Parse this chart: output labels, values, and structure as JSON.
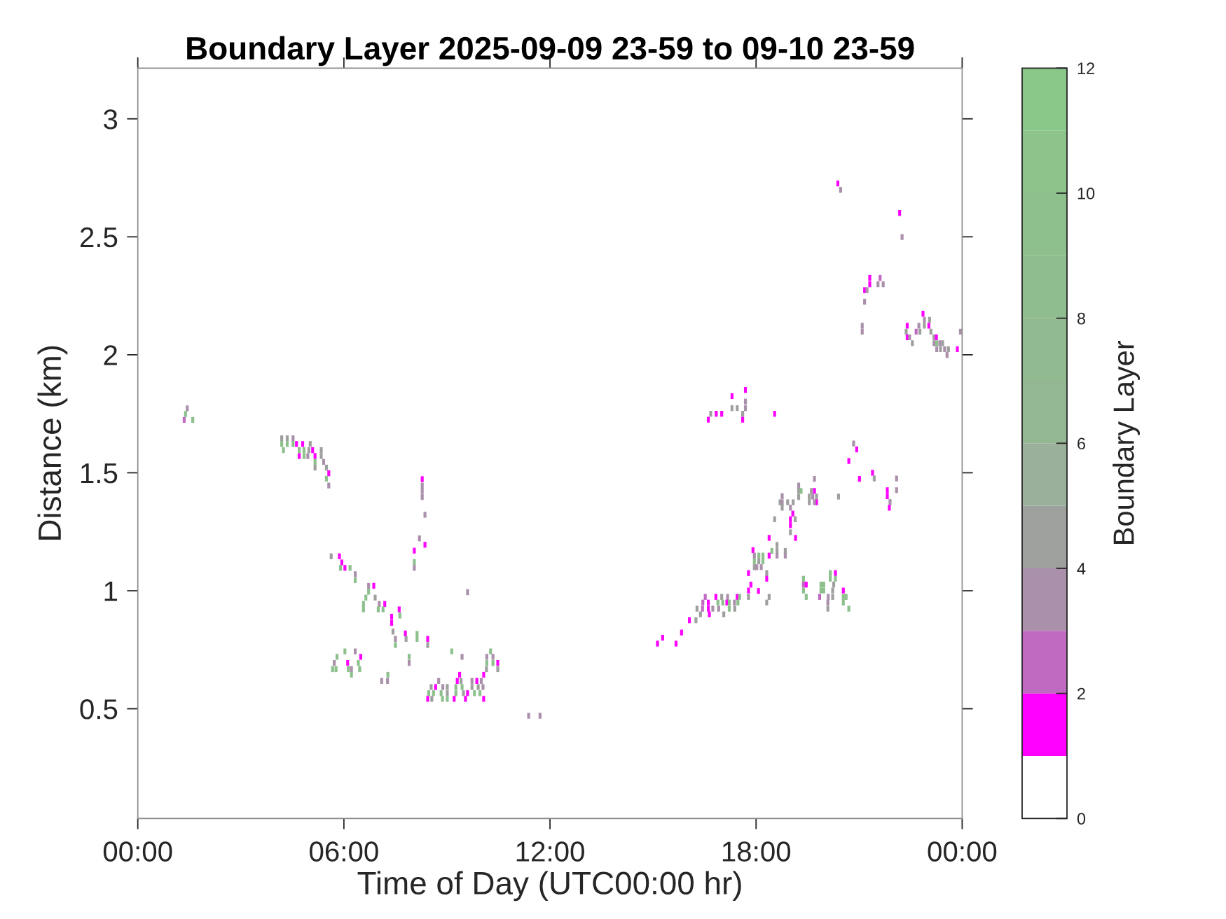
{
  "chart_data": {
    "type": "scatter",
    "title": "Boundary Layer 2025-09-09 23-59 to 09-10 23-59",
    "xlabel": "Time of Day (UTC00:00 hr)",
    "ylabel": "Distance (km)",
    "clabel": "Boundary Layer",
    "xlim": [
      0,
      24
    ],
    "xticks": [
      {
        "value": 0,
        "label": "00:00"
      },
      {
        "value": 6,
        "label": "06:00"
      },
      {
        "value": 12,
        "label": "12:00"
      },
      {
        "value": 18,
        "label": "18:00"
      },
      {
        "value": 24,
        "label": "00:00"
      }
    ],
    "ylim": [
      0.035,
      3.215
    ],
    "yticks": [
      0.5,
      1,
      1.5,
      2,
      2.5,
      3
    ],
    "clim": [
      0,
      12
    ],
    "cticks": [
      0,
      2,
      4,
      6,
      8,
      10,
      12
    ],
    "marker": "square",
    "x": [
      1.44,
      1.39,
      1.35,
      1.6,
      4.19,
      4.35,
      4.52,
      4.19,
      4.35,
      4.52,
      4.24,
      4.62,
      4.8,
      5.02,
      4.7,
      4.84,
      4.98,
      5.09,
      4.7,
      4.84,
      4.95,
      5.16,
      5.34,
      5.34,
      5.16,
      5.41,
      5.16,
      5.49,
      5.56,
      5.49,
      5.56,
      8.28,
      8.28,
      8.28,
      8.28,
      8.36,
      8.2,
      8.36,
      8.05,
      8.05,
      8.05,
      5.63,
      5.87,
      5.94,
      5.9,
      6.03,
      6.18,
      6.33,
      6.33,
      6.72,
      6.87,
      6.72,
      6.64,
      6.57,
      6.57,
      6.91,
      7.03,
      7.19,
      7.0,
      7.14,
      7.61,
      7.63,
      7.39,
      7.39,
      7.43,
      7.79,
      8.13,
      7.5,
      7.5,
      7.81,
      8.44,
      8.44,
      8.13,
      6.03,
      6.33,
      5.8,
      6.49,
      5.72,
      6.11,
      6.42,
      5.67,
      5.77,
      6.13,
      6.22,
      6.46,
      6.22,
      7.9,
      7.9,
      7.28,
      7.1,
      7.27,
      9.14,
      9.44,
      10.27,
      10.16,
      10.34,
      10.16,
      10.34,
      10.48,
      10.15,
      10.48,
      9.37,
      10.07,
      8.76,
      9.3,
      9.41,
      9.73,
      9.87,
      10.0,
      8.54,
      8.67,
      8.88,
      9.01,
      9.26,
      9.44,
      9.73,
      9.91,
      10.05,
      8.47,
      8.61,
      8.83,
      9.01,
      9.26,
      9.48,
      9.6,
      9.8,
      9.96,
      8.44,
      8.56,
      8.87,
      9.01,
      9.21,
      9.54,
      10.07,
      11.38,
      11.71,
      9.6,
      17.69,
      17.3,
      17.69,
      17.3,
      17.45,
      17.69,
      16.68,
      16.84,
      17.0,
      17.61,
      18.54,
      16.61,
      17.61,
      20.84,
      20.93,
      20.7,
      21.01,
      21.39,
      21.44,
      22.09,
      21.82,
      22.09,
      21.82,
      21.9,
      21.88,
      19.7,
      19.24,
      19.24,
      19.31,
      19.24,
      19.61,
      19.7,
      19.55,
      19.65,
      19.76,
      19.55,
      19.76,
      19.7,
      20.4,
      18.76,
      18.7,
      18.76,
      18.92,
      19.08,
      18.76,
      19.0,
      19.07,
      19.0,
      19.14,
      19.0,
      19.0,
      19.15,
      18.54,
      18.38,
      18.61,
      18.46,
      18.61,
      18.85,
      17.91,
      17.95,
      18.08,
      18.2,
      18.38,
      18.61,
      18.85,
      17.95,
      18.08,
      18.2,
      17.95,
      18.02,
      18.15,
      17.78,
      18.31,
      18.31,
      17.85,
      17.78,
      18.07,
      17.78,
      18.38,
      18.31,
      16.52,
      16.83,
      17.0,
      17.17,
      17.45,
      17.52,
      16.45,
      16.61,
      16.89,
      17.03,
      17.15,
      17.22,
      17.37,
      17.47,
      16.28,
      16.44,
      16.61,
      16.74,
      16.91,
      17.22,
      17.38,
      16.38,
      16.64,
      17.06,
      16.06,
      16.25,
      15.83,
      15.28,
      15.13,
      15.67,
      20.16,
      20.31,
      19.38,
      20.16,
      20.31,
      19.38,
      19.46,
      19.89,
      19.97,
      20.26,
      19.38,
      19.89,
      19.97,
      20.23,
      20.54,
      19.46,
      19.85,
      20.1,
      20.23,
      20.54,
      20.62,
      20.09,
      20.54,
      20.09,
      20.7,
      20.38,
      20.46,
      22.18,
      22.25,
      21.31,
      21.31,
      21.61,
      21.55,
      21.7,
      21.16,
      21.23,
      21.16,
      21.09,
      21.09,
      22.4,
      22.37,
      22.4,
      22.47,
      22.55,
      22.86,
      22.9,
      23.05,
      22.74,
      22.9,
      23.03,
      22.66,
      22.77,
      23.09,
      23.18,
      23.25,
      23.18,
      23.26,
      23.35,
      23.43,
      23.26,
      23.37,
      23.49,
      23.6,
      23.56,
      23.86,
      23.95
    ],
    "values": [
      1.773,
      1.749,
      1.724,
      1.724,
      1.646,
      1.646,
      1.646,
      1.622,
      1.622,
      1.622,
      1.596,
      1.622,
      1.622,
      1.622,
      1.596,
      1.596,
      1.596,
      1.596,
      1.571,
      1.571,
      1.571,
      1.571,
      1.596,
      1.571,
      1.546,
      1.546,
      1.522,
      1.522,
      1.498,
      1.475,
      1.446,
      1.473,
      1.446,
      1.423,
      1.397,
      1.322,
      1.222,
      1.195,
      1.17,
      1.122,
      1.097,
      1.146,
      1.146,
      1.12,
      1.097,
      1.097,
      1.097,
      1.07,
      1.045,
      1.021,
      1.021,
      0.996,
      0.971,
      0.944,
      0.921,
      0.971,
      0.944,
      0.944,
      0.921,
      0.921,
      0.921,
      0.895,
      0.89,
      0.864,
      0.827,
      0.819,
      0.817,
      0.796,
      0.77,
      0.796,
      0.796,
      0.77,
      0.796,
      0.743,
      0.743,
      0.72,
      0.72,
      0.694,
      0.694,
      0.694,
      0.668,
      0.668,
      0.668,
      0.668,
      0.668,
      0.644,
      0.72,
      0.694,
      0.644,
      0.618,
      0.618,
      0.743,
      0.72,
      0.743,
      0.72,
      0.72,
      0.694,
      0.694,
      0.694,
      0.668,
      0.668,
      0.644,
      0.644,
      0.618,
      0.618,
      0.618,
      0.618,
      0.618,
      0.618,
      0.592,
      0.592,
      0.592,
      0.592,
      0.592,
      0.592,
      0.592,
      0.592,
      0.592,
      0.566,
      0.566,
      0.566,
      0.566,
      0.566,
      0.566,
      0.566,
      0.566,
      0.566,
      0.542,
      0.542,
      0.542,
      0.542,
      0.542,
      0.542,
      0.542,
      0.47,
      0.47,
      0.994,
      1.851,
      1.825,
      1.802,
      1.774,
      1.774,
      1.774,
      1.75,
      1.75,
      1.75,
      1.75,
      1.75,
      1.725,
      1.725,
      1.624,
      1.599,
      1.55,
      1.474,
      1.5,
      1.476,
      1.476,
      1.426,
      1.426,
      1.401,
      1.376,
      1.352,
      1.474,
      1.446,
      1.423,
      1.423,
      1.397,
      1.423,
      1.423,
      1.399,
      1.399,
      1.399,
      1.375,
      1.375,
      1.375,
      1.399,
      1.401,
      1.375,
      1.375,
      1.375,
      1.375,
      1.352,
      1.352,
      1.327,
      1.303,
      1.303,
      1.278,
      1.248,
      1.224,
      1.303,
      1.224,
      1.194,
      1.169,
      1.169,
      1.169,
      1.172,
      1.149,
      1.149,
      1.149,
      1.149,
      1.149,
      1.149,
      1.125,
      1.125,
      1.125,
      1.1,
      1.1,
      1.1,
      1.075,
      1.075,
      1.051,
      1.026,
      1.001,
      0.999,
      0.974,
      0.974,
      0.95,
      0.974,
      0.974,
      0.974,
      0.974,
      0.974,
      0.974,
      0.95,
      0.95,
      0.95,
      0.95,
      0.95,
      0.95,
      0.95,
      0.95,
      0.924,
      0.924,
      0.924,
      0.924,
      0.924,
      0.924,
      0.924,
      0.9,
      0.9,
      0.9,
      0.875,
      0.875,
      0.823,
      0.801,
      0.776,
      0.776,
      1.075,
      1.075,
      1.051,
      1.051,
      1.051,
      1.026,
      1.026,
      1.026,
      1.026,
      1.026,
      1.001,
      1.001,
      1.001,
      1.001,
      1.001,
      0.974,
      0.974,
      0.974,
      0.974,
      0.974,
      0.974,
      0.95,
      0.95,
      0.924,
      0.924,
      2.726,
      2.699,
      2.601,
      2.499,
      2.326,
      2.299,
      2.326,
      2.299,
      2.299,
      2.274,
      2.274,
      2.225,
      2.123,
      2.098,
      2.123,
      2.098,
      2.074,
      2.074,
      2.049,
      2.174,
      2.148,
      2.148,
      2.123,
      2.123,
      2.123,
      2.098,
      2.098,
      2.098,
      2.074,
      2.074,
      2.049,
      2.049,
      2.049,
      2.049,
      2.024,
      2.024,
      2.024,
      2.024,
      1.999,
      2.024,
      2.098
    ],
    "cvalues": [
      3.5,
      9.5,
      2.5,
      9.5,
      4.5,
      4.5,
      3.5,
      9.5,
      9.5,
      9.5,
      9.5,
      1.5,
      1.5,
      4.5,
      9.5,
      9.5,
      4.5,
      1.5,
      1.5,
      9.5,
      3.5,
      1.5,
      4.5,
      4.5,
      9.5,
      3.5,
      4.5,
      4.5,
      1.5,
      9.5,
      3.5,
      1.5,
      3.5,
      3.5,
      3.5,
      3.5,
      3.5,
      1.5,
      1.5,
      9.5,
      3.5,
      4.5,
      1.5,
      1.5,
      9.5,
      1.5,
      9.5,
      3.5,
      9.5,
      3.5,
      1.5,
      9.5,
      9.5,
      9.5,
      9.5,
      4.5,
      3.5,
      1.5,
      9.5,
      9.5,
      1.5,
      9.5,
      1.5,
      1.5,
      4.5,
      1.5,
      9.5,
      3.5,
      9.5,
      4.5,
      1.5,
      4.5,
      9.5,
      9.5,
      3.5,
      9.5,
      1.5,
      3.5,
      1.5,
      9.5,
      9.5,
      9.5,
      9.5,
      3.5,
      9.5,
      9.5,
      9.5,
      3.5,
      9.5,
      3.5,
      3.5,
      9.5,
      3.5,
      9.5,
      3.5,
      3.5,
      9.5,
      9.5,
      1.5,
      4.5,
      4.5,
      1.5,
      1.5,
      3.5,
      1.5,
      4.5,
      3.5,
      1.5,
      3.5,
      4.5,
      1.5,
      3.5,
      4.5,
      9.5,
      9.5,
      4.5,
      4.5,
      3.5,
      9.5,
      9.5,
      9.5,
      4.5,
      9.5,
      4.5,
      1.5,
      9.5,
      9.5,
      1.5,
      4.5,
      9.5,
      9.5,
      1.5,
      1.5,
      1.5,
      3.5,
      3.5,
      3.5,
      1.5,
      1.5,
      3.5,
      4.5,
      4.5,
      3.5,
      4.5,
      1.5,
      1.5,
      4.5,
      1.5,
      1.5,
      1.5,
      3.5,
      1.5,
      1.5,
      1.5,
      1.5,
      4.5,
      3.5,
      1.5,
      3.5,
      1.5,
      3.5,
      1.5,
      3.5,
      3.5,
      4.5,
      9.5,
      4.5,
      4.5,
      1.5,
      4.5,
      3.5,
      4.5,
      4.5,
      1.5,
      3.5,
      4.5,
      3.5,
      4.5,
      3.5,
      4.5,
      4.5,
      4.5,
      3.5,
      1.5,
      1.5,
      4.5,
      1.5,
      4.5,
      1.5,
      4.5,
      1.5,
      4.5,
      9.5,
      4.5,
      4.5,
      1.5,
      3.5,
      9.5,
      9.5,
      1.5,
      3.5,
      3.5,
      9.5,
      4.5,
      9.5,
      4.5,
      3.5,
      3.5,
      1.5,
      4.5,
      1.5,
      1.5,
      1.5,
      1.5,
      4.5,
      4.5,
      4.5,
      2.5,
      1.5,
      4.5,
      3.5,
      1.5,
      9.5,
      2.5,
      1.5,
      9.5,
      9.5,
      1.5,
      9.5,
      3.5,
      9.5,
      4.5,
      2.5,
      1.5,
      3.5,
      3.5,
      9.5,
      4.5,
      4.5,
      1.5,
      4.5,
      1.5,
      4.5,
      1.5,
      1.5,
      1.5,
      1.5,
      9.5,
      1.5,
      9.5,
      9.5,
      9.5,
      2.5,
      1.5,
      9.5,
      9.5,
      4.5,
      9.5,
      9.5,
      9.5,
      4.5,
      1.5,
      9.5,
      2.5,
      3.5,
      4.5,
      9.5,
      9.5,
      3.5,
      9.5,
      4.5,
      9.5,
      1.5,
      3.5,
      1.5,
      3.5,
      1.5,
      1.5,
      2.5,
      3.5,
      3.5,
      1.5,
      3.5,
      3.5,
      3.5,
      3.5,
      1.5,
      4.5,
      1.5,
      3.5,
      4.5,
      1.5,
      3.5,
      4.5,
      3.5,
      4.5,
      1.5,
      2.5,
      4.5,
      4.5,
      4.5,
      1.5,
      3.5,
      9.5,
      3.5,
      4.5,
      3.5,
      4.5,
      3.5,
      4.5,
      3.5,
      1.5,
      3.5
    ]
  }
}
